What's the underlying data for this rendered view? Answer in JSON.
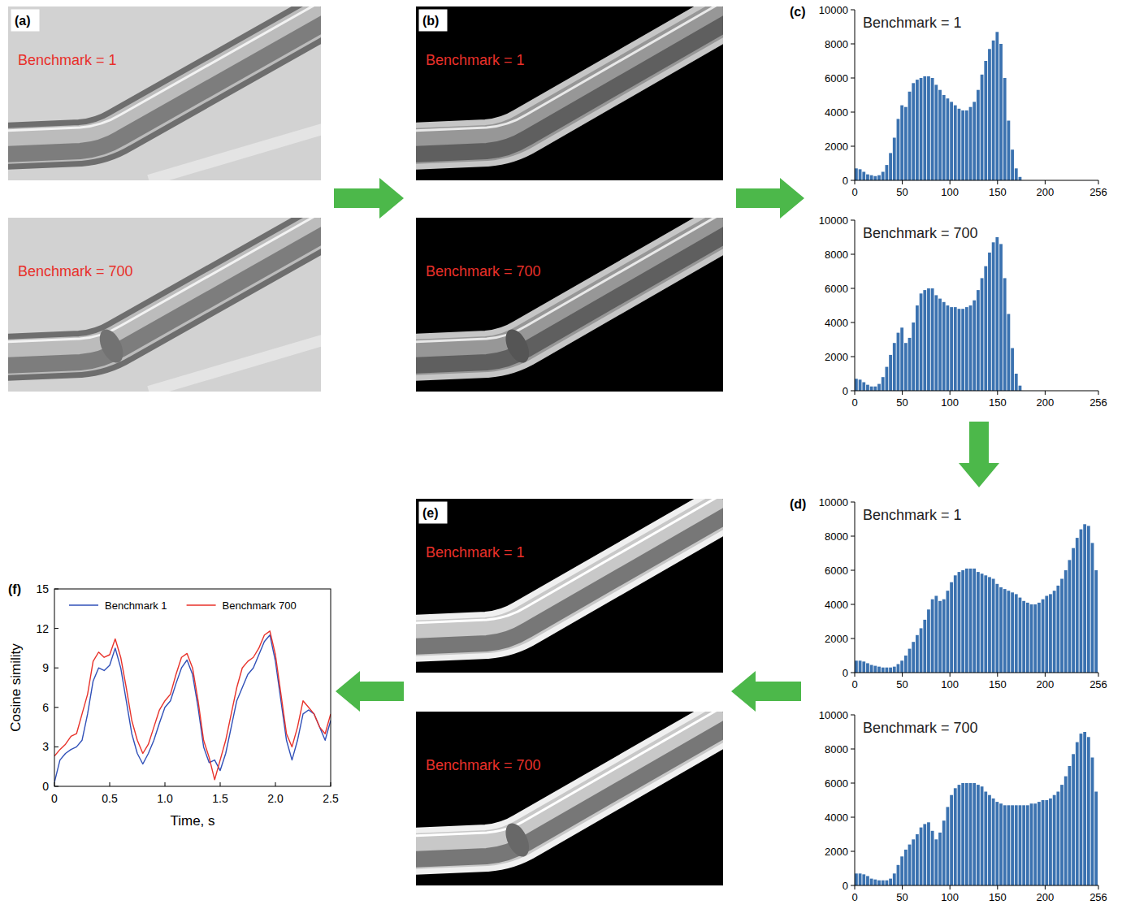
{
  "images": [
    {
      "panel": "(a)",
      "labels": [
        "Benchmark = 1",
        "Benchmark = 700"
      ]
    },
    {
      "panel": "(b)",
      "labels": [
        "Benchmark = 1",
        "Benchmark = 700"
      ]
    },
    {
      "panel": "(e)",
      "labels": [
        "Benchmark = 1",
        "Benchmark = 700"
      ]
    }
  ],
  "chart_data": [
    {
      "type": "histogram",
      "panel": "(c)",
      "title": "Benchmark = 1",
      "color": "#3b72b0",
      "bins": [
        0,
        4,
        8,
        12,
        16,
        20,
        24,
        28,
        32,
        36,
        40,
        44,
        48,
        52,
        56,
        60,
        64,
        68,
        72,
        76,
        80,
        84,
        88,
        92,
        96,
        100,
        104,
        108,
        112,
        116,
        120,
        124,
        128,
        132,
        136,
        140,
        144,
        148,
        152,
        156,
        160,
        164,
        168,
        172,
        176,
        180,
        184,
        188,
        192,
        196,
        200,
        204,
        208,
        212,
        216,
        220,
        224,
        228,
        232,
        236,
        240,
        244,
        248,
        252,
        256
      ],
      "values": [
        700,
        650,
        500,
        350,
        300,
        250,
        300,
        500,
        900,
        1600,
        2500,
        3600,
        4400,
        4300,
        5200,
        5700,
        5900,
        6000,
        6100,
        6100,
        6000,
        5600,
        5300,
        5000,
        4800,
        4600,
        4400,
        4200,
        4100,
        4100,
        4300,
        4600,
        5300,
        6200,
        7000,
        7700,
        8200,
        8700,
        8000,
        6000,
        3500,
        1800,
        700,
        200,
        0,
        0,
        0,
        0,
        0,
        0,
        0,
        0,
        0,
        0,
        0,
        0,
        0,
        0,
        0,
        0,
        0,
        0,
        0,
        0
      ],
      "xlim": [
        0,
        256
      ],
      "xticks": [
        0,
        50,
        100,
        150,
        200,
        256
      ],
      "ylim": [
        0,
        10000
      ],
      "yticks": [
        0,
        2000,
        4000,
        6000,
        8000,
        10000
      ]
    },
    {
      "type": "histogram",
      "title": "Benchmark = 700",
      "color": "#3b72b0",
      "bins": [
        0,
        4,
        8,
        12,
        16,
        20,
        24,
        28,
        32,
        36,
        40,
        44,
        48,
        52,
        56,
        60,
        64,
        68,
        72,
        76,
        80,
        84,
        88,
        92,
        96,
        100,
        104,
        108,
        112,
        116,
        120,
        124,
        128,
        132,
        136,
        140,
        144,
        148,
        152,
        156,
        160,
        164,
        168,
        172,
        176,
        180,
        184,
        188,
        192,
        196,
        200,
        204,
        208,
        212,
        216,
        220,
        224,
        228,
        232,
        236,
        240,
        244,
        248,
        252,
        256
      ],
      "values": [
        700,
        650,
        500,
        350,
        250,
        250,
        400,
        800,
        1400,
        2100,
        2800,
        3400,
        3700,
        2800,
        3100,
        4000,
        5000,
        5700,
        5900,
        6000,
        6000,
        5600,
        5400,
        5200,
        5000,
        4900,
        4900,
        4800,
        4800,
        4900,
        5000,
        5300,
        5900,
        6600,
        7300,
        8100,
        8700,
        9000,
        8600,
        6600,
        4500,
        2500,
        1000,
        300,
        0,
        0,
        0,
        0,
        0,
        0,
        0,
        0,
        0,
        0,
        0,
        0,
        0,
        0,
        0,
        0,
        0,
        0,
        0,
        0
      ],
      "xlim": [
        0,
        256
      ],
      "xticks": [
        0,
        50,
        100,
        150,
        200,
        256
      ],
      "ylim": [
        0,
        10000
      ],
      "yticks": [
        0,
        2000,
        4000,
        6000,
        8000,
        10000
      ]
    },
    {
      "type": "histogram",
      "panel": "(d)",
      "title": "Benchmark = 1",
      "color": "#3b72b0",
      "bins": [
        0,
        4,
        8,
        12,
        16,
        20,
        24,
        28,
        32,
        36,
        40,
        44,
        48,
        52,
        56,
        60,
        64,
        68,
        72,
        76,
        80,
        84,
        88,
        92,
        96,
        100,
        104,
        108,
        112,
        116,
        120,
        124,
        128,
        132,
        136,
        140,
        144,
        148,
        152,
        156,
        160,
        164,
        168,
        172,
        176,
        180,
        184,
        188,
        192,
        196,
        200,
        204,
        208,
        212,
        216,
        220,
        224,
        228,
        232,
        236,
        240,
        244,
        248,
        252,
        256
      ],
      "values": [
        700,
        700,
        650,
        550,
        450,
        400,
        350,
        300,
        300,
        300,
        350,
        500,
        700,
        1000,
        1400,
        1800,
        2200,
        2600,
        3100,
        3700,
        4300,
        4500,
        4200,
        4300,
        4800,
        5300,
        5700,
        5900,
        6000,
        6100,
        6100,
        6100,
        5900,
        5800,
        5700,
        5600,
        5500,
        5200,
        5000,
        4900,
        4800,
        4700,
        4600,
        4400,
        4200,
        4100,
        4000,
        4000,
        4100,
        4300,
        4500,
        4600,
        4800,
        5100,
        5500,
        6000,
        6600,
        7300,
        7900,
        8400,
        8700,
        8600,
        7600,
        6000
      ],
      "xlim": [
        0,
        256
      ],
      "xticks": [
        0,
        50,
        100,
        150,
        200,
        256
      ],
      "ylim": [
        0,
        10000
      ],
      "yticks": [
        0,
        2000,
        4000,
        6000,
        8000,
        10000
      ]
    },
    {
      "type": "histogram",
      "title": "Benchmark = 700",
      "color": "#3b72b0",
      "bins": [
        0,
        4,
        8,
        12,
        16,
        20,
        24,
        28,
        32,
        36,
        40,
        44,
        48,
        52,
        56,
        60,
        64,
        68,
        72,
        76,
        80,
        84,
        88,
        92,
        96,
        100,
        104,
        108,
        112,
        116,
        120,
        124,
        128,
        132,
        136,
        140,
        144,
        148,
        152,
        156,
        160,
        164,
        168,
        172,
        176,
        180,
        184,
        188,
        192,
        196,
        200,
        204,
        208,
        212,
        216,
        220,
        224,
        228,
        232,
        236,
        240,
        244,
        248,
        252,
        256
      ],
      "values": [
        700,
        700,
        650,
        550,
        400,
        350,
        300,
        300,
        300,
        400,
        700,
        1200,
        1700,
        2100,
        2400,
        2700,
        3000,
        3400,
        3600,
        3700,
        3200,
        2700,
        3100,
        3800,
        4600,
        5300,
        5700,
        5900,
        6000,
        6000,
        6000,
        6000,
        5900,
        5800,
        5500,
        5300,
        5100,
        4900,
        4800,
        4700,
        4700,
        4700,
        4700,
        4700,
        4700,
        4700,
        4800,
        4800,
        4900,
        5000,
        5000,
        5100,
        5300,
        5500,
        5900,
        6400,
        7000,
        7700,
        8400,
        8900,
        9000,
        8700,
        7500,
        5500
      ],
      "xlim": [
        0,
        256
      ],
      "xticks": [
        0,
        50,
        100,
        150,
        200,
        256
      ],
      "ylim": [
        0,
        10000
      ],
      "yticks": [
        0,
        2000,
        4000,
        6000,
        8000,
        10000
      ]
    },
    {
      "type": "line",
      "panel": "(f)",
      "x_label": "Time, s",
      "y_label": "Cosine simility",
      "legend": "top",
      "x": [
        0,
        0.05,
        0.1,
        0.15,
        0.2,
        0.25,
        0.3,
        0.35,
        0.4,
        0.45,
        0.5,
        0.55,
        0.6,
        0.65,
        0.7,
        0.75,
        0.8,
        0.85,
        0.9,
        0.95,
        1,
        1.05,
        1.1,
        1.15,
        1.2,
        1.25,
        1.3,
        1.35,
        1.4,
        1.45,
        1.5,
        1.55,
        1.6,
        1.65,
        1.7,
        1.75,
        1.8,
        1.85,
        1.9,
        1.95,
        2,
        2.05,
        2.1,
        2.15,
        2.2,
        2.25,
        2.3,
        2.35,
        2.4,
        2.45,
        2.5
      ],
      "series": [
        {
          "name": "Benchmark 1",
          "color": "#3050b8",
          "values": [
            0.3,
            2.0,
            2.5,
            2.8,
            3.0,
            3.5,
            5.5,
            8.0,
            9.0,
            8.8,
            9.2,
            10.5,
            9.0,
            6.5,
            4.0,
            2.5,
            1.7,
            2.5,
            3.5,
            4.8,
            6.0,
            6.5,
            7.8,
            9.0,
            9.6,
            8.5,
            6.0,
            3.0,
            1.8,
            2.0,
            1.2,
            2.5,
            4.5,
            6.5,
            7.5,
            8.5,
            9.0,
            10.0,
            11.0,
            11.5,
            9.5,
            6.5,
            3.5,
            2.0,
            3.5,
            5.5,
            5.8,
            5.5,
            4.5,
            3.5,
            5.0
          ]
        },
        {
          "name": "Benchmark 700",
          "color": "#e8322a",
          "values": [
            2.3,
            2.8,
            3.2,
            3.8,
            4.0,
            5.5,
            7.0,
            9.5,
            10.2,
            9.8,
            10.0,
            11.2,
            9.8,
            7.5,
            5.0,
            3.5,
            2.5,
            3.2,
            4.5,
            5.8,
            6.5,
            7.0,
            8.5,
            9.8,
            10.1,
            9.0,
            6.5,
            3.5,
            2.2,
            0.5,
            2.0,
            3.5,
            5.5,
            7.5,
            9.0,
            9.5,
            9.8,
            10.5,
            11.5,
            11.8,
            10.0,
            7.0,
            4.0,
            3.0,
            4.5,
            6.5,
            6.0,
            5.5,
            4.5,
            4.0,
            5.5
          ]
        }
      ],
      "xlim": [
        0,
        2.5
      ],
      "xticks": [
        0,
        0.5,
        {
          "value": 1,
          "label": "1.0"
        },
        1.5,
        {
          "value": 2,
          "label": "2.0"
        },
        2.5
      ],
      "ylim": [
        0,
        15
      ],
      "yticks": [
        0,
        3,
        6,
        9,
        12,
        15
      ]
    }
  ]
}
